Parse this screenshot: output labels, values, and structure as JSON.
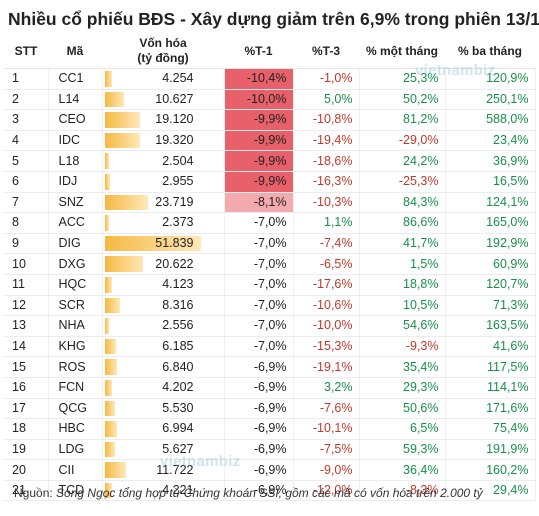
{
  "title": "Nhiều cổ phiếu BĐS - Xây dựng giảm trên 6,9% trong phiên 13/1",
  "headers": {
    "stt": "STT",
    "ma": "Mã",
    "von_hoa_1": "Vốn hóa",
    "von_hoa_2": "(tỷ đồng)",
    "t1": "%T-1",
    "t3": "%T-3",
    "month": "% một tháng",
    "three_month": "% ba tháng"
  },
  "rows": [
    {
      "stt": "1",
      "ma": "CC1",
      "von": "4.254",
      "von_val": 4254,
      "t1": "-10,4%",
      "t1_val": -10.4,
      "t3": "-1,0%",
      "m1": "25,3%",
      "m3": "120,9%"
    },
    {
      "stt": "2",
      "ma": "L14",
      "von": "10.627",
      "von_val": 10627,
      "t1": "-10,0%",
      "t1_val": -10.0,
      "t3": "5,0%",
      "m1": "50,2%",
      "m3": "250,1%"
    },
    {
      "stt": "3",
      "ma": "CEO",
      "von": "19.120",
      "von_val": 19120,
      "t1": "-9,9%",
      "t1_val": -9.9,
      "t3": "-10,8%",
      "m1": "81,2%",
      "m3": "588,0%"
    },
    {
      "stt": "4",
      "ma": "IDC",
      "von": "19.320",
      "von_val": 19320,
      "t1": "-9,9%",
      "t1_val": -9.9,
      "t3": "-19,4%",
      "m1": "-29,0%",
      "m3": "23,4%"
    },
    {
      "stt": "5",
      "ma": "L18",
      "von": "2.504",
      "von_val": 2504,
      "t1": "-9,9%",
      "t1_val": -9.9,
      "t3": "-18,6%",
      "m1": "24,2%",
      "m3": "36,9%"
    },
    {
      "stt": "6",
      "ma": "IDJ",
      "von": "2.955",
      "von_val": 2955,
      "t1": "-9,9%",
      "t1_val": -9.9,
      "t3": "-16,3%",
      "m1": "-25,3%",
      "m3": "16,5%"
    },
    {
      "stt": "7",
      "ma": "SNZ",
      "von": "23.719",
      "von_val": 23719,
      "t1": "-8,1%",
      "t1_val": -8.1,
      "t3": "-10,3%",
      "m1": "84,3%",
      "m3": "124,1%"
    },
    {
      "stt": "8",
      "ma": "ACC",
      "von": "2.373",
      "von_val": 2373,
      "t1": "-7,0%",
      "t1_val": -7.0,
      "t3": "1,1%",
      "m1": "86,6%",
      "m3": "165,0%"
    },
    {
      "stt": "9",
      "ma": "DIG",
      "von": "51.839",
      "von_val": 51839,
      "t1": "-7,0%",
      "t1_val": -7.0,
      "t3": "-7,4%",
      "m1": "41,7%",
      "m3": "192,9%"
    },
    {
      "stt": "10",
      "ma": "DXG",
      "von": "20.622",
      "von_val": 20622,
      "t1": "-7,0%",
      "t1_val": -7.0,
      "t3": "-6,5%",
      "m1": "1,5%",
      "m3": "60,9%"
    },
    {
      "stt": "11",
      "ma": "HQC",
      "von": "4.123",
      "von_val": 4123,
      "t1": "-7,0%",
      "t1_val": -7.0,
      "t3": "-17,6%",
      "m1": "18,8%",
      "m3": "120,7%"
    },
    {
      "stt": "12",
      "ma": "SCR",
      "von": "8.316",
      "von_val": 8316,
      "t1": "-7,0%",
      "t1_val": -7.0,
      "t3": "-10,6%",
      "m1": "10,5%",
      "m3": "71,3%"
    },
    {
      "stt": "13",
      "ma": "NHA",
      "von": "2.556",
      "von_val": 2556,
      "t1": "-7,0%",
      "t1_val": -7.0,
      "t3": "-10,0%",
      "m1": "54,6%",
      "m3": "163,5%"
    },
    {
      "stt": "14",
      "ma": "KHG",
      "von": "6.185",
      "von_val": 6185,
      "t1": "-7,0%",
      "t1_val": -7.0,
      "t3": "-15,3%",
      "m1": "-9,3%",
      "m3": "41,6%"
    },
    {
      "stt": "15",
      "ma": "ROS",
      "von": "6.840",
      "von_val": 6840,
      "t1": "-6,9%",
      "t1_val": -6.9,
      "t3": "-19,1%",
      "m1": "35,4%",
      "m3": "117,5%"
    },
    {
      "stt": "16",
      "ma": "FCN",
      "von": "4.202",
      "von_val": 4202,
      "t1": "-6,9%",
      "t1_val": -6.9,
      "t3": "3,2%",
      "m1": "29,3%",
      "m3": "114,1%"
    },
    {
      "stt": "17",
      "ma": "QCG",
      "von": "5.530",
      "von_val": 5530,
      "t1": "-6,9%",
      "t1_val": -6.9,
      "t3": "-7,6%",
      "m1": "50,6%",
      "m3": "171,6%"
    },
    {
      "stt": "18",
      "ma": "HBC",
      "von": "6.994",
      "von_val": 6994,
      "t1": "-6,9%",
      "t1_val": -6.9,
      "t3": "-10,1%",
      "m1": "6,5%",
      "m3": "75,4%"
    },
    {
      "stt": "19",
      "ma": "LDG",
      "von": "5.627",
      "von_val": 5627,
      "t1": "-6,9%",
      "t1_val": -6.9,
      "t3": "-7,5%",
      "m1": "59,3%",
      "m3": "191,9%"
    },
    {
      "stt": "20",
      "ma": "CII",
      "von": "11.722",
      "von_val": 11722,
      "t1": "-6,9%",
      "t1_val": -6.9,
      "t3": "-9,0%",
      "m1": "36,4%",
      "m3": "160,2%"
    },
    {
      "stt": "21",
      "ma": "TCD",
      "von": "4.221",
      "von_val": 4221,
      "t1": "-6,9%",
      "t1_val": -6.9,
      "t3": "-12,0%",
      "m1": "-8,3%",
      "m3": "29,4%"
    }
  ],
  "footer": {
    "label": "Nguồn:",
    "text": "Song Ngọc tổng hợp từ Chứng khoán SSI, gồm các mã có vốn hóa trên 2.000 tỷ"
  },
  "watermark": "vietnambiz",
  "colors": {
    "bar": "#f5b942",
    "heat_strong": "#e8606a",
    "heat_light": "#fbe3e5",
    "negative": "#c0392b",
    "positive": "#17914a"
  }
}
